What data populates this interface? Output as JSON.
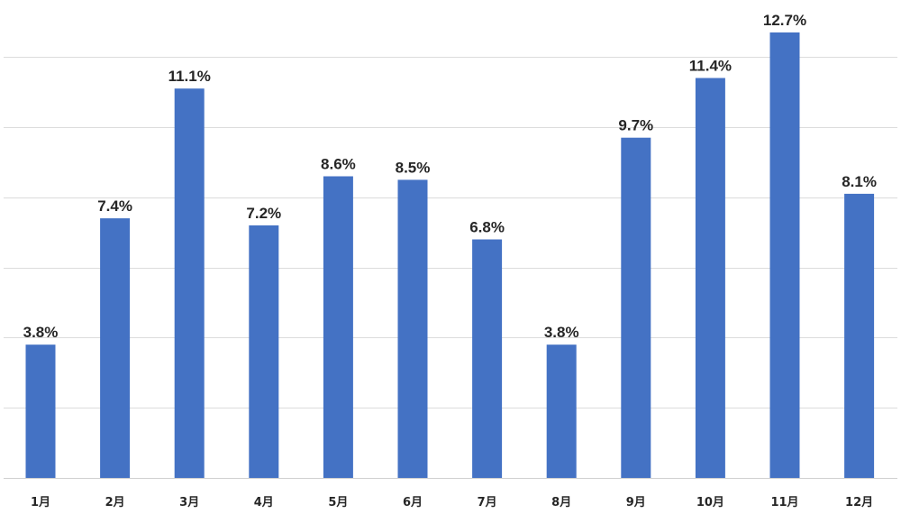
{
  "chart_data": {
    "type": "bar",
    "categories": [
      "1月",
      "2月",
      "3月",
      "4月",
      "5月",
      "6月",
      "7月",
      "8月",
      "9月",
      "10月",
      "11月",
      "12月"
    ],
    "values": [
      3.8,
      7.4,
      11.1,
      7.2,
      8.6,
      8.5,
      6.8,
      3.8,
      9.7,
      11.4,
      12.7,
      8.1
    ],
    "data_labels": [
      "3.8%",
      "7.4%",
      "11.1%",
      "7.2%",
      "8.6%",
      "8.5%",
      "6.8%",
      "3.8%",
      "9.7%",
      "11.4%",
      "12.7%",
      "8.1%"
    ],
    "title": "",
    "xlabel": "",
    "ylabel": "",
    "ylim": [
      0,
      12
    ],
    "y_ticks": [
      0,
      2,
      4,
      6,
      8,
      10,
      12
    ],
    "grid": true,
    "legend": "none",
    "colors": {
      "bar": "#4472C4",
      "gridline": "#dcdcdc",
      "label_text": "#262626"
    }
  }
}
